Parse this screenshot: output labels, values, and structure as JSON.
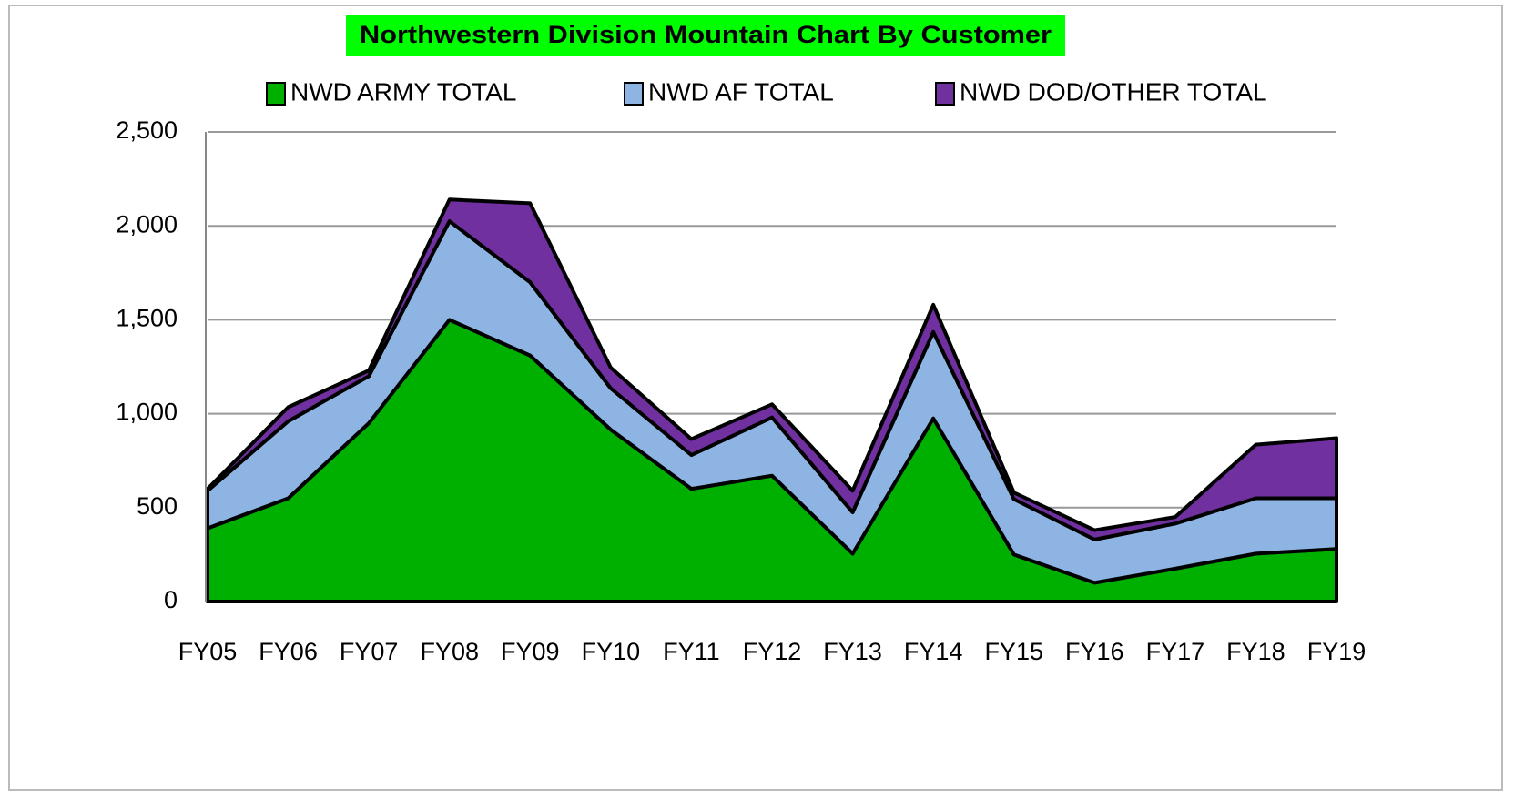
{
  "chart_data": {
    "type": "stacked_area",
    "title": "Northwestern Division Mountain Chart By Customer",
    "categories": [
      "FY05",
      "FY06",
      "FY07",
      "FY08",
      "FY09",
      "FY10",
      "FY11",
      "FY12",
      "FY13",
      "FY14",
      "FY15",
      "FY16",
      "FY17",
      "FY18",
      "FY19"
    ],
    "series": [
      {
        "name": "NWD ARMY TOTAL",
        "color": "#00b000",
        "values": [
          390,
          550,
          950,
          1500,
          1310,
          915,
          600,
          670,
          255,
          975,
          250,
          100,
          175,
          255,
          280
        ]
      },
      {
        "name": "NWD AF TOTAL",
        "color": "#8eb4e3",
        "values": [
          200,
          410,
          250,
          525,
          390,
          220,
          180,
          310,
          220,
          460,
          295,
          230,
          240,
          295,
          270
        ]
      },
      {
        "name": "NWD DOD/OTHER TOTAL",
        "color": "#7030a0",
        "values": [
          10,
          75,
          30,
          115,
          420,
          110,
          85,
          70,
          115,
          145,
          35,
          50,
          35,
          285,
          320
        ]
      }
    ],
    "ylim": [
      0,
      2500
    ],
    "yticks": [
      0,
      500,
      {
        "value": 1000,
        "label": "1,000"
      },
      {
        "value": 1500,
        "label": "1,500"
      },
      {
        "value": 2000,
        "label": "2,000"
      },
      {
        "value": 2500,
        "label": "2,500"
      }
    ],
    "grid": true,
    "legend": "top"
  }
}
